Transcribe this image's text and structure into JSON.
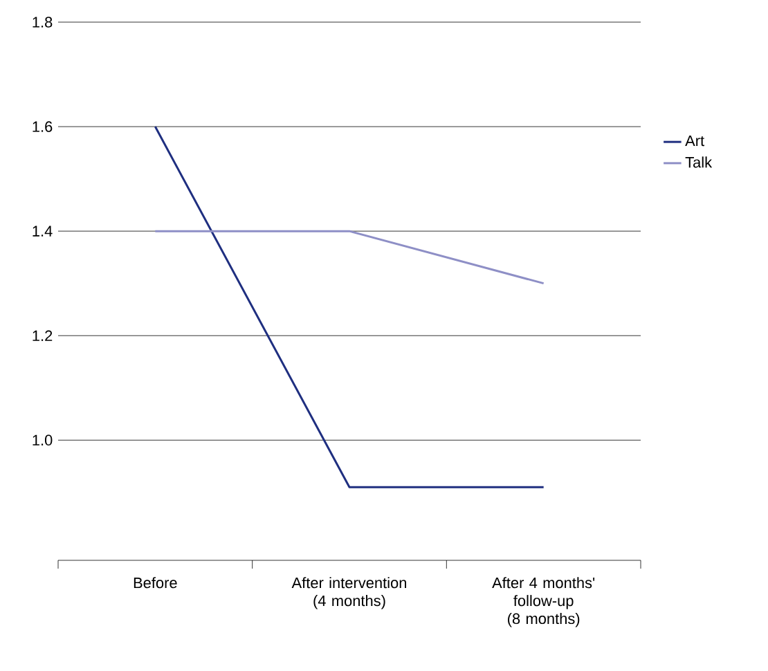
{
  "chart_data": {
    "type": "line",
    "categories": [
      "Before",
      "After intervention (4 months)",
      "After 4 months' follow-up (8 months)"
    ],
    "series": [
      {
        "name": "Art",
        "color": "#1f2f80",
        "values": [
          1.6,
          0.91,
          0.91
        ]
      },
      {
        "name": "Talk",
        "color": "#8e8fc6",
        "values": [
          1.4,
          1.4,
          1.3
        ]
      }
    ],
    "ylim": [
      0.77,
      1.8
    ],
    "yticks": [
      {
        "value": 1,
        "label": "1.0"
      },
      1.2,
      1.4,
      1.6,
      1.8
    ],
    "grid": "y",
    "legend": "right",
    "marker": "none",
    "line_style": "solid"
  }
}
